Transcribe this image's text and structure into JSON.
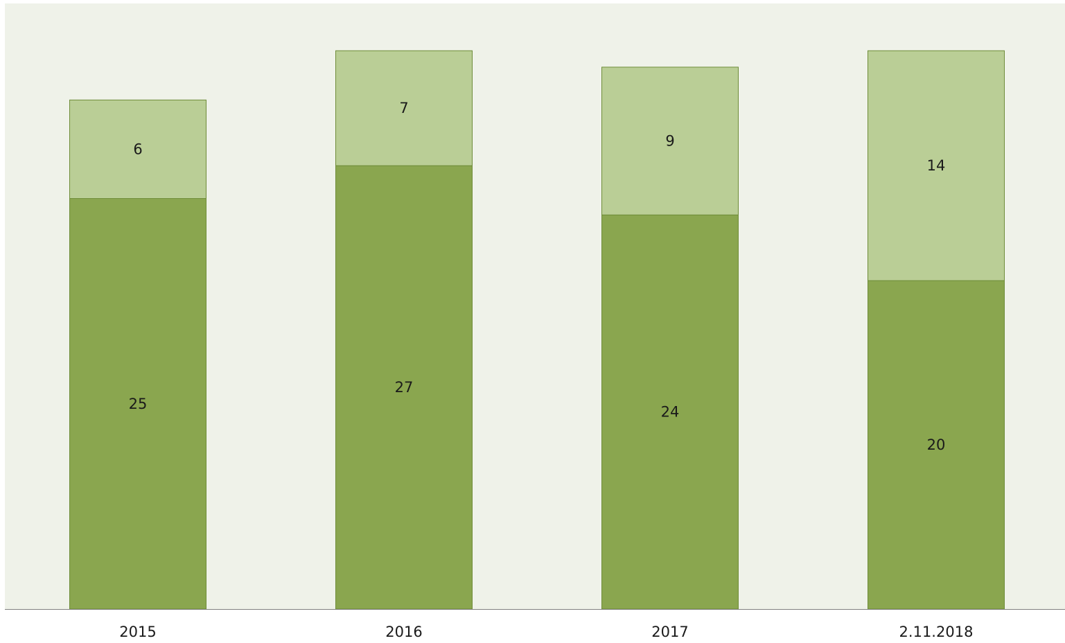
{
  "chart_data": {
    "type": "bar",
    "stacked": true,
    "categories": [
      "2015",
      "2016",
      "2017",
      "2.11.2018"
    ],
    "series": [
      {
        "values": [
          25,
          27,
          24,
          20
        ],
        "color": "#8aa64f"
      },
      {
        "values": [
          6,
          7,
          9,
          14
        ],
        "color": "#bace96"
      }
    ],
    "title": "",
    "xlabel": "",
    "ylabel": "",
    "ylim": [
      0,
      40
    ],
    "grid": false,
    "legend": "none",
    "plot_background": "#eff2e9",
    "bar_border_color": "#6e8c38",
    "axis_color": "#7f7f7f"
  }
}
